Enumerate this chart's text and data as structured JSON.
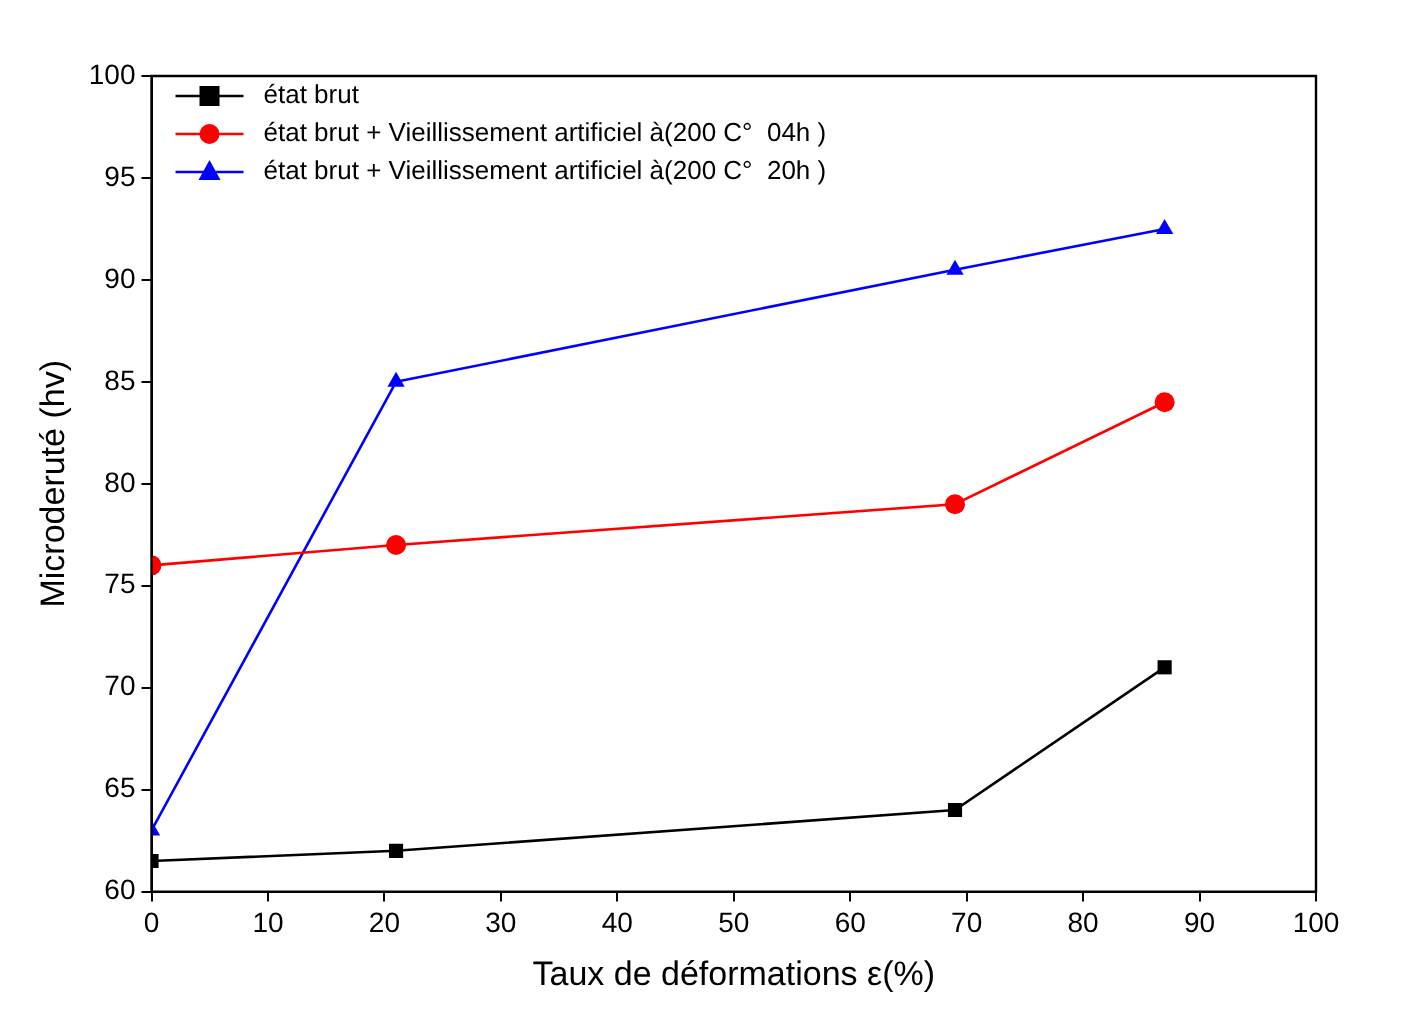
{
  "chart_data": {
    "type": "line",
    "xlabel": "Taux de déformations ε(%)",
    "ylabel": "Microderuté (hv)",
    "xlim": [
      0,
      100
    ],
    "xticks": [
      0,
      10,
      20,
      30,
      40,
      50,
      60,
      70,
      80,
      90,
      100
    ],
    "ylim": [
      60,
      100
    ],
    "yticks": [
      60,
      65,
      70,
      75,
      80,
      85,
      90,
      95,
      100
    ],
    "grid": false,
    "legend": "top left",
    "line_style": "solid",
    "series": [
      {
        "name": "état brut",
        "color": "#000000",
        "marker": "square",
        "x": [
          0,
          21,
          69,
          87
        ],
        "values": [
          61.5,
          62,
          64,
          71
        ]
      },
      {
        "name": "état brut + Vieillissement artificiel à(200 C°  04h )",
        "color": "#ff0000",
        "marker": "circle",
        "x": [
          0,
          21,
          69,
          87
        ],
        "values": [
          76,
          77,
          79,
          84
        ]
      },
      {
        "name": "état brut + Vieillissement artificiel à(200 C°  20h )",
        "color": "#0000ff",
        "marker": "triangle",
        "x": [
          0,
          21,
          69,
          87
        ],
        "values": [
          63,
          85,
          90.5,
          92.5
        ]
      }
    ]
  }
}
